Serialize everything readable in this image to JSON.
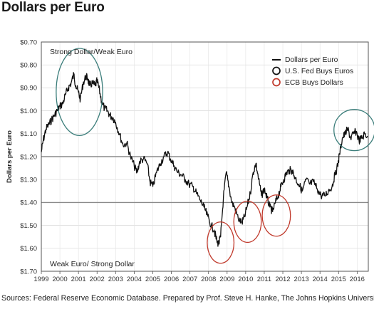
{
  "title": "Dollars per Euro",
  "source": "Sources:  Federal Reserve Economic Database. Prepared by Prof. Steve H. Hanke, The Johns Hopkins University.",
  "chart_data": {
    "type": "line",
    "ylabel": "Dollars per Euro",
    "y_inverted": true,
    "ylim": [
      0.7,
      1.7
    ],
    "y_ticks": [
      "$0.70",
      "$0.80",
      "$0.90",
      "$1.00",
      "$1.10",
      "$1.20",
      "$1.30",
      "$1.40",
      "$1.50",
      "$1.60",
      "$1.70"
    ],
    "x_ticks": [
      "1999",
      "2000",
      "2001",
      "2002",
      "2003",
      "2004",
      "2005",
      "2006",
      "2007",
      "2008",
      "2009",
      "2010",
      "2011",
      "2012",
      "2013",
      "2014",
      "2015",
      "2016"
    ],
    "xlim": [
      1999.0,
      2016.6
    ],
    "reference_lines": [
      1.2,
      1.4
    ],
    "grid": true,
    "annotations": {
      "top": "Strong Dollar/Weak Euro",
      "bottom": "Weak Euro/ Strong Dollar"
    },
    "legend": {
      "position": "top-right",
      "items": [
        {
          "label": "Dollars per Euro",
          "marker": "line",
          "color": "#111111"
        },
        {
          "label": "U.S. Fed Buys Euros",
          "marker": "circle",
          "color": "#111111"
        },
        {
          "label": "ECB Buys Dollars",
          "marker": "circle",
          "color": "#c0392b"
        }
      ]
    },
    "series": [
      {
        "color": "#111111",
        "x": [
          1999.0,
          1999.1,
          1999.25,
          1999.4,
          1999.55,
          1999.7,
          1999.85,
          2000.0,
          2000.15,
          2000.3,
          2000.45,
          2000.6,
          2000.75,
          2000.85,
          2001.0,
          2001.1,
          2001.25,
          2001.4,
          2001.5,
          2001.6,
          2001.75,
          2001.9,
          2002.0,
          2002.1,
          2002.25,
          2002.4,
          2002.55,
          2002.7,
          2002.85,
          2003.0,
          2003.2,
          2003.4,
          2003.6,
          2003.8,
          2004.0,
          2004.15,
          2004.3,
          2004.5,
          2004.7,
          2004.85,
          2005.0,
          2005.2,
          2005.4,
          2005.6,
          2005.8,
          2005.95,
          2006.15,
          2006.35,
          2006.55,
          2006.75,
          2006.95,
          2007.15,
          2007.35,
          2007.55,
          2007.75,
          2007.95,
          2008.15,
          2008.3,
          2008.45,
          2008.55,
          2008.65,
          2008.8,
          2008.95,
          2009.1,
          2009.25,
          2009.4,
          2009.6,
          2009.8,
          2009.95,
          2010.1,
          2010.25,
          2010.4,
          2010.55,
          2010.7,
          2010.85,
          2011.0,
          2011.15,
          2011.3,
          2011.45,
          2011.6,
          2011.75,
          2011.9,
          2012.05,
          2012.2,
          2012.35,
          2012.5,
          2012.65,
          2012.85,
          2013.05,
          2013.25,
          2013.45,
          2013.65,
          2013.85,
          2014.05,
          2014.25,
          2014.45,
          2014.65,
          2014.8,
          2014.95,
          2015.05,
          2015.2,
          2015.35,
          2015.5,
          2015.65,
          2015.8,
          2015.95,
          2016.1,
          2016.25,
          2016.4,
          2016.55
        ],
        "values": [
          1.18,
          1.13,
          1.08,
          1.06,
          1.04,
          1.02,
          1.0,
          0.98,
          0.97,
          0.93,
          0.9,
          0.88,
          0.84,
          0.89,
          0.92,
          0.95,
          0.88,
          0.85,
          0.86,
          0.89,
          0.88,
          0.89,
          0.87,
          0.9,
          0.96,
          0.99,
          1.0,
          1.02,
          1.03,
          1.05,
          1.1,
          1.15,
          1.14,
          1.2,
          1.24,
          1.27,
          1.22,
          1.21,
          1.23,
          1.31,
          1.33,
          1.27,
          1.23,
          1.2,
          1.18,
          1.21,
          1.24,
          1.27,
          1.28,
          1.3,
          1.32,
          1.33,
          1.36,
          1.39,
          1.42,
          1.46,
          1.5,
          1.52,
          1.57,
          1.58,
          1.55,
          1.38,
          1.27,
          1.33,
          1.4,
          1.42,
          1.47,
          1.49,
          1.46,
          1.41,
          1.36,
          1.27,
          1.23,
          1.3,
          1.37,
          1.34,
          1.38,
          1.42,
          1.44,
          1.4,
          1.37,
          1.33,
          1.3,
          1.27,
          1.26,
          1.26,
          1.29,
          1.32,
          1.35,
          1.3,
          1.32,
          1.31,
          1.34,
          1.37,
          1.37,
          1.35,
          1.33,
          1.28,
          1.24,
          1.19,
          1.12,
          1.1,
          1.08,
          1.12,
          1.1,
          1.09,
          1.13,
          1.12,
          1.1,
          1.11
        ]
      }
    ],
    "circles": [
      {
        "kind": "fed",
        "x": 2001.05,
        "y": 0.918,
        "rx": 1.25,
        "ry": 0.19,
        "color": "#3b7d7a"
      },
      {
        "kind": "ecb",
        "x": 2008.65,
        "y": 1.575,
        "rx": 0.72,
        "ry": 0.09,
        "color": "#c0392b"
      },
      {
        "kind": "ecb",
        "x": 2010.1,
        "y": 1.484,
        "rx": 0.74,
        "ry": 0.09,
        "color": "#c0392b"
      },
      {
        "kind": "ecb",
        "x": 2011.65,
        "y": 1.457,
        "rx": 0.76,
        "ry": 0.09,
        "color": "#c0392b"
      },
      {
        "kind": "fed",
        "x": 2015.85,
        "y": 1.084,
        "rx": 1.1,
        "ry": 0.09,
        "color": "#3b7d7a"
      }
    ]
  }
}
